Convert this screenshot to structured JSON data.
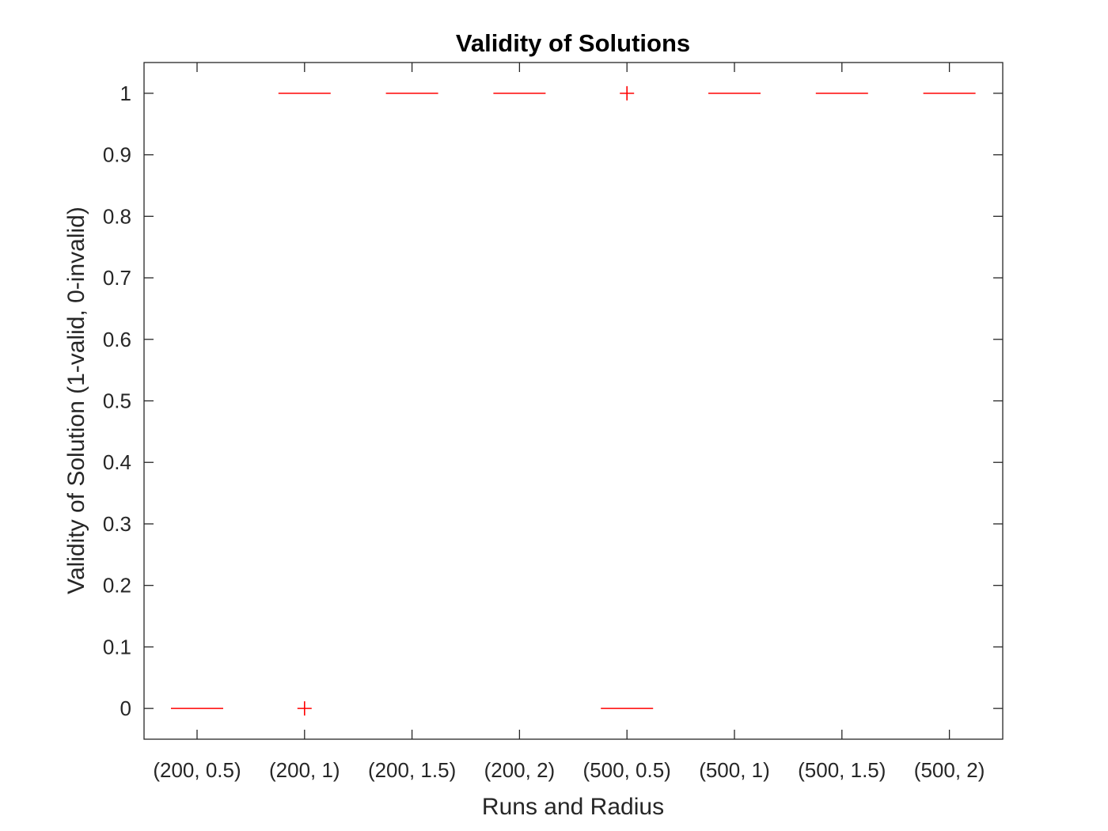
{
  "chart_data": {
    "type": "boxplot",
    "title": "Validity of Solutions",
    "xlabel": "Runs and Radius",
    "ylabel": "Validity of Solution (1-valid, 0-invalid)",
    "categories": [
      "(200, 0.5)",
      "(200, 1)",
      "(200, 1.5)",
      "(200, 2)",
      "(500, 0.5)",
      "(500, 1)",
      "(500, 1.5)",
      "(500, 2)"
    ],
    "medians": [
      0,
      1,
      1,
      1,
      0,
      1,
      1,
      1
    ],
    "outliers": [
      {
        "category": "(200, 1)",
        "value": 0
      },
      {
        "category": "(500, 0.5)",
        "value": 1
      }
    ],
    "ylim": [
      -0.05,
      1.05
    ],
    "yticks": [
      "0",
      "0.1",
      "0.2",
      "0.3",
      "0.4",
      "0.5",
      "0.6",
      "0.7",
      "0.8",
      "0.9",
      "1"
    ],
    "grid": false,
    "colors": {
      "marks": "#ff0000",
      "axes": "#262626"
    }
  }
}
